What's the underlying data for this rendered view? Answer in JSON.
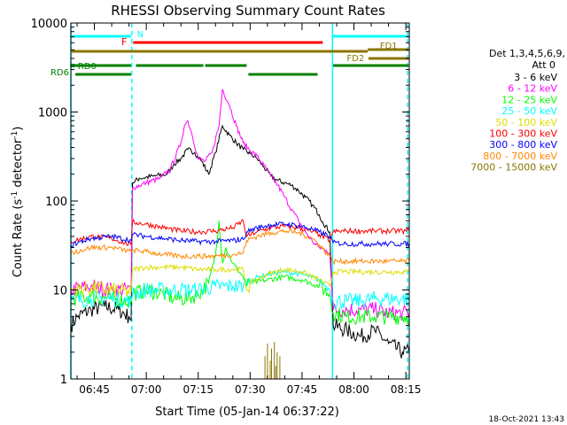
{
  "chart_data": {
    "type": "line",
    "title": "RHESSI Observing Summary Count Rates",
    "xlabel": "Start Time (05-Jan-14 06:37:22)",
    "ylabel": "Count Rate (s",
    "ylabel_sup1": "-1",
    "ylabel_mid": " detector",
    "ylabel_sup2": "-1",
    "ylabel_end": ")",
    "xlim": [
      38.2,
      136
    ],
    "ylim": [
      1,
      10000
    ],
    "y_scale": "log",
    "x_ticks": [
      {
        "v": 45,
        "label": "06:45"
      },
      {
        "v": 60,
        "label": "07:00"
      },
      {
        "v": 75,
        "label": "07:15"
      },
      {
        "v": 90,
        "label": "07:30"
      },
      {
        "v": 105,
        "label": "07:45"
      },
      {
        "v": 120,
        "label": "08:00"
      },
      {
        "v": 135,
        "label": "08:15"
      }
    ],
    "y_ticks": [
      {
        "v": 1,
        "label": "1"
      },
      {
        "v": 10,
        "label": "10"
      },
      {
        "v": 100,
        "label": "100"
      },
      {
        "v": 1000,
        "label": "1000"
      },
      {
        "v": 10000,
        "label": "10000"
      }
    ],
    "legend_position": "right",
    "legend_title_1": "Det 1,3,4,5,6,9,",
    "legend_title_2": "Att 0",
    "series": [
      {
        "name": "3 - 6 keV",
        "color": "#000000",
        "x": [
          38.2,
          40,
          44,
          48,
          52,
          55,
          55.6,
          56,
          58,
          62,
          66,
          68,
          70,
          72,
          74,
          76,
          78,
          80,
          82,
          84,
          86,
          88,
          90,
          92,
          94,
          96,
          98,
          100,
          102,
          104,
          106,
          108,
          110,
          111,
          113,
          114,
          118,
          122,
          126,
          130,
          134,
          136
        ],
        "y": [
          4,
          5,
          6,
          6.5,
          6,
          5,
          4.5,
          160,
          180,
          190,
          200,
          260,
          300,
          380,
          350,
          280,
          200,
          350,
          700,
          550,
          450,
          380,
          340,
          300,
          240,
          190,
          170,
          160,
          150,
          130,
          110,
          90,
          70,
          58,
          45,
          4,
          3.5,
          3,
          3.5,
          2.5,
          2,
          2
        ]
      },
      {
        "name": "6 - 12 keV",
        "color": "#ff00ff",
        "x": [
          38.2,
          44,
          50,
          55.6,
          56,
          60,
          64,
          67,
          70,
          71,
          72,
          73,
          75,
          77,
          79,
          81,
          82,
          84,
          86,
          88,
          90,
          92,
          94,
          96,
          98,
          100,
          102,
          104,
          106,
          108,
          110,
          112,
          113,
          114,
          118,
          122,
          126,
          130,
          134,
          136
        ],
        "y": [
          10,
          11,
          10,
          10,
          140,
          160,
          180,
          230,
          450,
          700,
          800,
          600,
          300,
          280,
          350,
          700,
          1800,
          1200,
          700,
          450,
          370,
          320,
          250,
          190,
          150,
          110,
          80,
          60,
          45,
          35,
          30,
          28,
          26,
          6,
          6,
          6,
          6,
          5.5,
          5.5,
          5.5
        ]
      },
      {
        "name": "12 - 25 keV",
        "color": "#00ff00",
        "x": [
          38.2,
          44,
          50,
          55.6,
          56,
          60,
          65,
          68,
          72,
          75,
          78,
          80,
          81,
          82,
          83,
          85,
          88,
          89,
          90,
          95,
          100,
          105,
          110,
          113,
          114,
          118,
          122,
          126,
          130,
          134,
          136
        ],
        "y": [
          8,
          8.5,
          8,
          7.5,
          9,
          10,
          9,
          8,
          8,
          9,
          12,
          25,
          60,
          20,
          30,
          20,
          14,
          11,
          12,
          13,
          14,
          13,
          11,
          9,
          5.5,
          5,
          5,
          5,
          5,
          5,
          5
        ]
      },
      {
        "name": "25 - 50 keV",
        "color": "#00ffff",
        "x": [
          38.2,
          44,
          50,
          55.6,
          56,
          60,
          65,
          70,
          75,
          80,
          85,
          88,
          89,
          90,
          95,
          100,
          105,
          110,
          113,
          114,
          118,
          122,
          126,
          130,
          134,
          136
        ],
        "y": [
          7.5,
          8,
          8,
          7.5,
          9,
          10,
          10,
          10,
          10,
          11,
          11,
          11,
          12,
          13,
          15,
          16,
          15,
          13,
          10,
          7.5,
          7.5,
          7.5,
          8,
          8,
          8,
          8
        ]
      },
      {
        "name": "50 - 100 keV",
        "color": "#dddd00",
        "x": [
          38.2,
          44,
          50,
          55.6,
          56,
          60,
          65,
          70,
          75,
          80,
          85,
          88,
          89,
          90,
          95,
          100,
          105,
          110,
          113,
          114,
          118,
          122,
          126,
          130,
          134,
          136
        ],
        "y": [
          10,
          10.5,
          10,
          9.5,
          17,
          18,
          18,
          18,
          17,
          17,
          17,
          17,
          10,
          12,
          15,
          17,
          16,
          13,
          11,
          16,
          16,
          16,
          16,
          16,
          16,
          16
        ]
      },
      {
        "name": "100 - 300 keV",
        "color": "#ff0000",
        "x": [
          38.2,
          44,
          50,
          55.6,
          56,
          60,
          65,
          70,
          75,
          80,
          85,
          88,
          89,
          92,
          96,
          100,
          104,
          108,
          110,
          113,
          114,
          118,
          122,
          126,
          130,
          134,
          136
        ],
        "y": [
          35,
          40,
          38,
          32,
          58,
          55,
          50,
          46,
          45,
          46,
          50,
          60,
          40,
          45,
          50,
          52,
          50,
          45,
          42,
          36,
          45,
          46,
          46,
          46,
          46,
          46,
          46
        ]
      },
      {
        "name": "300 - 800 keV",
        "color": "#0000ff",
        "x": [
          38.2,
          44,
          50,
          55.6,
          56,
          60,
          65,
          70,
          75,
          80,
          85,
          88,
          89,
          92,
          96,
          100,
          104,
          108,
          110,
          113,
          114,
          118,
          122,
          126,
          130,
          134,
          136
        ],
        "y": [
          32,
          38,
          40,
          36,
          42,
          40,
          38,
          36,
          35,
          35,
          36,
          37,
          45,
          50,
          54,
          55,
          53,
          48,
          45,
          40,
          34,
          33,
          33,
          33,
          33,
          33,
          33
        ]
      },
      {
        "name": "800 - 7000 keV",
        "color": "#ff8800",
        "x": [
          38.2,
          44,
          50,
          55.6,
          56,
          60,
          65,
          70,
          75,
          80,
          85,
          88,
          89,
          92,
          96,
          100,
          104,
          108,
          110,
          113,
          114,
          118,
          122,
          126,
          130,
          134,
          136
        ],
        "y": [
          26,
          30,
          30,
          27,
          28,
          27,
          25,
          24,
          24,
          24,
          25,
          26,
          36,
          40,
          44,
          46,
          44,
          38,
          32,
          24,
          21,
          21,
          21,
          21,
          21,
          21,
          21
        ]
      },
      {
        "name": "7000 - 15000 keV",
        "color": "#8b7500",
        "x": [
          94,
          94.3,
          94.6,
          95,
          95.4,
          95.8,
          96.2,
          96.6,
          97,
          97.4,
          97.8,
          98.2,
          98.6
        ],
        "y": [
          1,
          1.8,
          1,
          2.5,
          1,
          1.6,
          2.2,
          1,
          2.6,
          1.4,
          2,
          1,
          1.8
        ]
      }
    ],
    "annotations": {
      "N": {
        "label": "N",
        "color": "#00ffff"
      },
      "F": {
        "label": "F",
        "color": "#ff0000"
      },
      "FD1": {
        "label": "FD1",
        "color": "#8b7500"
      },
      "FD2": {
        "label": "FD2",
        "color": "#8b7500"
      },
      "RD0": {
        "label": "RD0",
        "color": "#008000"
      },
      "RD6": {
        "label": "RD6",
        "color": "#008000"
      }
    },
    "footer_date": "18-Oct-2021 13:43"
  }
}
